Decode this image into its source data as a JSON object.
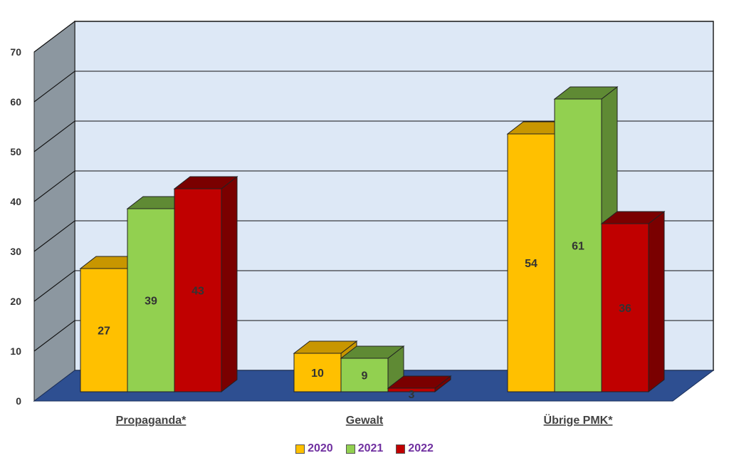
{
  "chart_data": {
    "type": "bar",
    "title": "",
    "xlabel": "",
    "ylabel": "",
    "ylim": [
      0,
      70
    ],
    "yticks": [
      0,
      10,
      20,
      30,
      40,
      50,
      60,
      70
    ],
    "grid": true,
    "legend": "bottom",
    "categories": [
      "Propaganda*",
      "Gewalt",
      "Übrige PMK*"
    ],
    "series": [
      {
        "name": "2020",
        "values": [
          27,
          10,
          54
        ],
        "color": "#ffc000",
        "color_dark": "#c89600"
      },
      {
        "name": "2021",
        "values": [
          39,
          9,
          61
        ],
        "color": "#92d050",
        "color_dark": "#5f8a34"
      },
      {
        "name": "2022",
        "values": [
          43,
          3,
          36
        ],
        "color": "#c00000",
        "color_dark": "#7a0000"
      }
    ]
  }
}
